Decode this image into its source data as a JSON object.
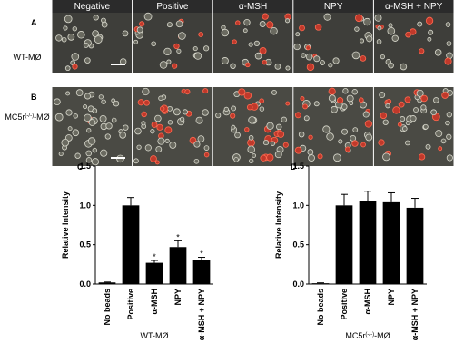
{
  "panels": {
    "columns": [
      "Negative",
      "Positive",
      "α-MSH",
      "NPY",
      "α-MSH + NPY"
    ],
    "rows": [
      {
        "letter": "A",
        "label": "WT-MØ"
      },
      {
        "letter": "B",
        "label": {
          "base": "MC5r",
          "sup": "(-/-)",
          "suffix": "-MØ"
        }
      }
    ]
  },
  "chart_data": [
    {
      "type": "bar",
      "panel": "C",
      "ylabel": "Relative Intensity",
      "xlabel": "WT-MØ",
      "categories": [
        "No beads",
        "Positive",
        "α-MSH",
        "NPY",
        "α-MSH + NPY"
      ],
      "values": [
        0.02,
        1.0,
        0.27,
        0.47,
        0.31
      ],
      "errors": [
        0.005,
        0.1,
        0.03,
        0.08,
        0.03
      ],
      "markers": [
        null,
        null,
        "*",
        "*",
        "*"
      ],
      "color": "#000000",
      "ylim": [
        0,
        1.5
      ],
      "yticks": [
        {
          "value": 0,
          "label": "0.0"
        },
        0.5,
        {
          "value": 1,
          "label": "1.0"
        },
        1.5
      ]
    },
    {
      "type": "bar",
      "panel": "D",
      "ylabel": "Relative Intensity",
      "xlabel": {
        "base": "MC5r",
        "sup": "(-/-)",
        "suffix": "-MØ"
      },
      "categories": [
        "No beads",
        "Positive",
        "α-MSH",
        "NPY",
        "α-MSH + NPY"
      ],
      "values": [
        0.01,
        1.0,
        1.06,
        1.04,
        0.97
      ],
      "errors": [
        0.005,
        0.14,
        0.12,
        0.12,
        0.12
      ],
      "color": "#000000",
      "ylim": [
        0,
        1.5
      ],
      "yticks": [
        {
          "value": 0,
          "label": "0.0"
        },
        0.5,
        {
          "value": 1,
          "label": "1.0"
        },
        1.5
      ]
    }
  ]
}
